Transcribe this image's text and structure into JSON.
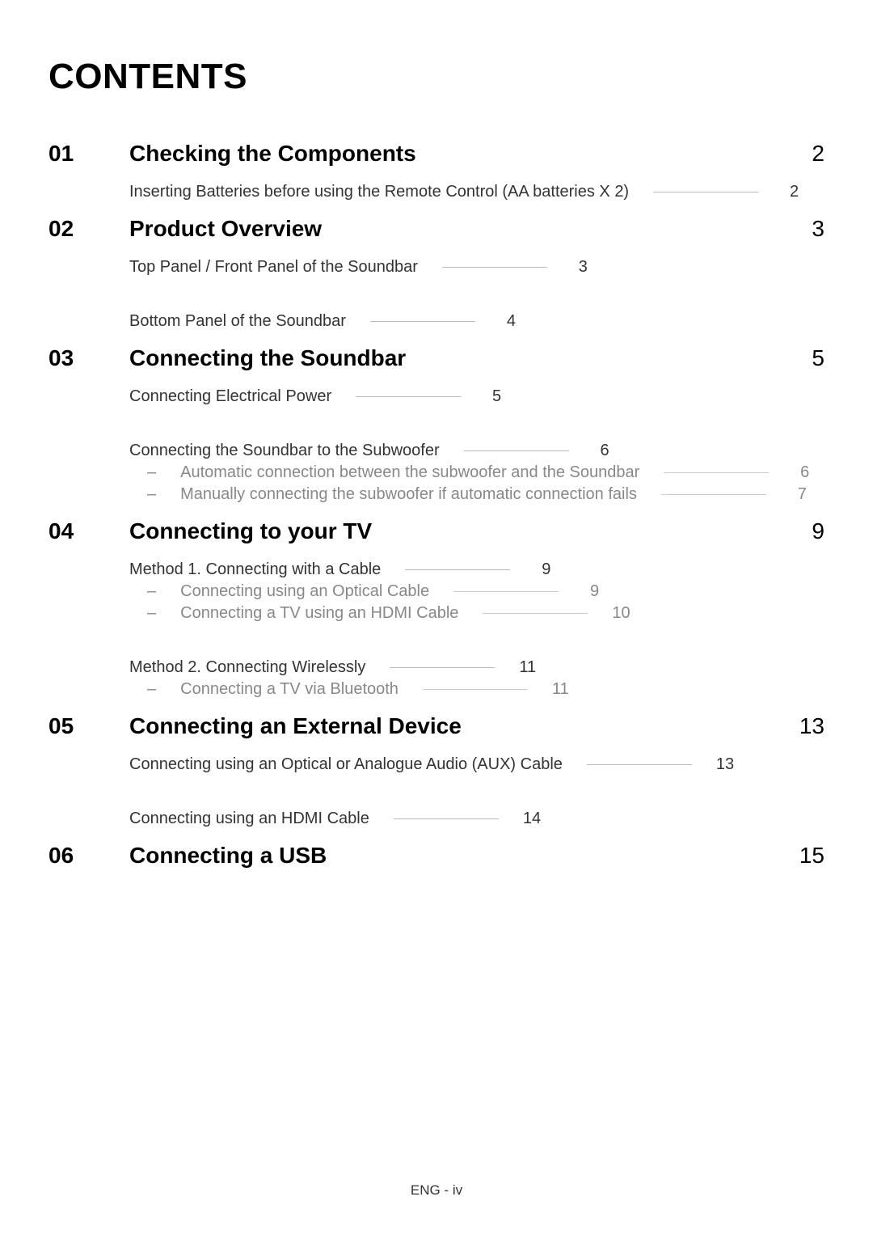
{
  "title": "CONTENTS",
  "colors": {
    "text": "#000000",
    "subtext": "#333333",
    "dim": "#888888",
    "leader": "#bbbbbb",
    "background": "#ffffff"
  },
  "typography": {
    "title_size": 44,
    "section_size": 28,
    "sub_size": 20,
    "footer_size": 17,
    "font_family": "Arial, Helvetica, sans-serif"
  },
  "sections": [
    {
      "num": "01",
      "title": "Checking the Components",
      "page": "2",
      "subs": [
        {
          "type": "item",
          "label": "Inserting Batteries before using the Remote Control (AA batteries X 2)",
          "page": "2",
          "dim": false,
          "leader": "short"
        }
      ]
    },
    {
      "num": "02",
      "title": "Product Overview",
      "page": "3",
      "subs": [
        {
          "type": "item",
          "label": "Top Panel / Front Panel of the Soundbar",
          "page": "3",
          "dim": false,
          "leader": "short"
        },
        {
          "type": "item",
          "label": "Bottom Panel of the Soundbar",
          "page": "4",
          "dim": false,
          "leader": "short",
          "gap_before": true
        }
      ]
    },
    {
      "num": "03",
      "title": "Connecting the Soundbar",
      "page": "5",
      "subs": [
        {
          "type": "item",
          "label": "Connecting Electrical Power",
          "page": "5",
          "dim": false,
          "leader": "short"
        },
        {
          "type": "item",
          "label": "Connecting the Soundbar to the Subwoofer",
          "page": "6",
          "dim": false,
          "leader": "short",
          "gap_before": true
        },
        {
          "type": "sub",
          "label": "Automatic connection between the subwoofer and the Soundbar",
          "page": "6",
          "dim": true
        },
        {
          "type": "sub",
          "label": "Manually connecting the subwoofer if automatic connection fails",
          "page": "7",
          "dim": true
        }
      ]
    },
    {
      "num": "04",
      "title": "Connecting to your TV",
      "page": "9",
      "subs": [
        {
          "type": "item",
          "label": "Method 1. Connecting with a Cable",
          "page": "9",
          "dim": false,
          "leader": "short"
        },
        {
          "type": "sub",
          "label": "Connecting using an Optical Cable",
          "page": "9",
          "dim": true
        },
        {
          "type": "sub",
          "label": "Connecting a TV using an HDMI Cable",
          "page": "10",
          "dim": true
        },
        {
          "type": "item",
          "label": "Method 2. Connecting Wirelessly",
          "page": "11",
          "dim": false,
          "leader": "short",
          "gap_before": true
        },
        {
          "type": "sub",
          "label": "Connecting a TV via Bluetooth",
          "page": "11",
          "dim": true
        }
      ]
    },
    {
      "num": "05",
      "title": "Connecting an External Device",
      "page": "13",
      "subs": [
        {
          "type": "item",
          "label": "Connecting using an Optical or Analogue Audio (AUX) Cable",
          "page": "13",
          "dim": false,
          "leader": "short"
        },
        {
          "type": "item",
          "label": "Connecting using an HDMI Cable",
          "page": "14",
          "dim": false,
          "leader": "short",
          "gap_before": true
        }
      ]
    },
    {
      "num": "06",
      "title": "Connecting a USB",
      "page": "15",
      "subs": []
    }
  ],
  "footer": "ENG - iv"
}
